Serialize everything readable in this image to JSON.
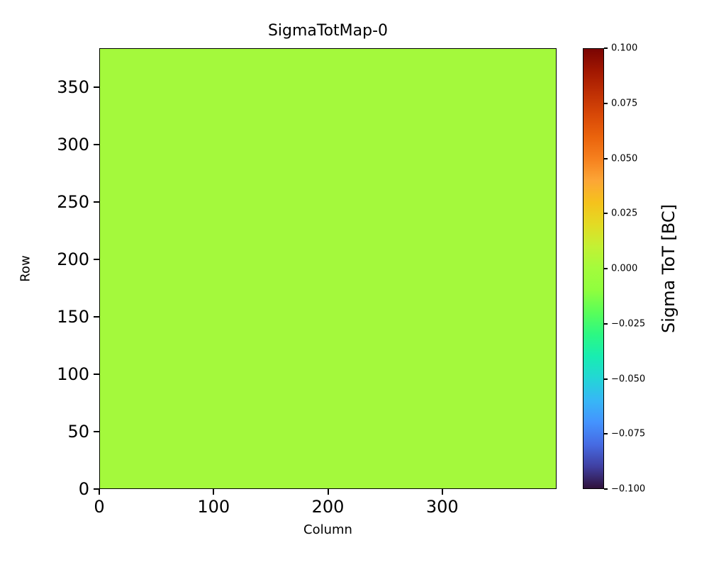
{
  "chart_data": {
    "type": "heatmap",
    "title": "SigmaTotMap-0",
    "xlabel": "Column",
    "ylabel": "Row",
    "x_range": [
      0,
      400
    ],
    "y_range": [
      0,
      384
    ],
    "grid_columns": 400,
    "grid_rows": 384,
    "uniform_value": 0.0,
    "uniform_color": "#a4f93c",
    "x_ticks": [
      {
        "label": "0",
        "pos": 0
      },
      {
        "label": "100",
        "pos": 25
      },
      {
        "label": "200",
        "pos": 50
      },
      {
        "label": "300",
        "pos": 75
      }
    ],
    "y_ticks": [
      {
        "label": "0",
        "pos": 0
      },
      {
        "label": "50",
        "pos": 13.02
      },
      {
        "label": "100",
        "pos": 26.04
      },
      {
        "label": "150",
        "pos": 39.06
      },
      {
        "label": "200",
        "pos": 52.08
      },
      {
        "label": "250",
        "pos": 65.1
      },
      {
        "label": "300",
        "pos": 78.13
      },
      {
        "label": "350",
        "pos": 91.15
      }
    ],
    "colorbar": {
      "label": "Sigma ToT [BC]",
      "range": [
        -0.1,
        0.1
      ],
      "colormap": "turbo",
      "ticks": [
        {
          "label": "0.100",
          "pos": 100
        },
        {
          "label": "0.075",
          "pos": 87.5
        },
        {
          "label": "0.050",
          "pos": 75
        },
        {
          "label": "0.025",
          "pos": 62.5
        },
        {
          "label": "0.000",
          "pos": 50
        },
        {
          "label": "−0.025",
          "pos": 37.5
        },
        {
          "label": "−0.050",
          "pos": 25
        },
        {
          "label": "−0.075",
          "pos": 12.5
        },
        {
          "label": "−0.100",
          "pos": 0
        }
      ],
      "gradient_stops": [
        {
          "pos": 0,
          "color": "#30123b"
        },
        {
          "pos": 5,
          "color": "#4040a2"
        },
        {
          "pos": 10,
          "color": "#466be3"
        },
        {
          "pos": 15,
          "color": "#4493fe"
        },
        {
          "pos": 20,
          "color": "#37b7f6"
        },
        {
          "pos": 25,
          "color": "#23d6d6"
        },
        {
          "pos": 30,
          "color": "#18edb1"
        },
        {
          "pos": 35,
          "color": "#2cf883"
        },
        {
          "pos": 40,
          "color": "#59fe59"
        },
        {
          "pos": 45,
          "color": "#8ffe3e"
        },
        {
          "pos": 50,
          "color": "#a4fc3c"
        },
        {
          "pos": 55,
          "color": "#c3f134"
        },
        {
          "pos": 60,
          "color": "#e3db24"
        },
        {
          "pos": 65,
          "color": "#f5c21c"
        },
        {
          "pos": 70,
          "color": "#fca636"
        },
        {
          "pos": 75,
          "color": "#f6801e"
        },
        {
          "pos": 80,
          "color": "#ea630c"
        },
        {
          "pos": 85,
          "color": "#d84807"
        },
        {
          "pos": 90,
          "color": "#be2f04"
        },
        {
          "pos": 95,
          "color": "#a11701"
        },
        {
          "pos": 100,
          "color": "#7a0403"
        }
      ]
    }
  }
}
